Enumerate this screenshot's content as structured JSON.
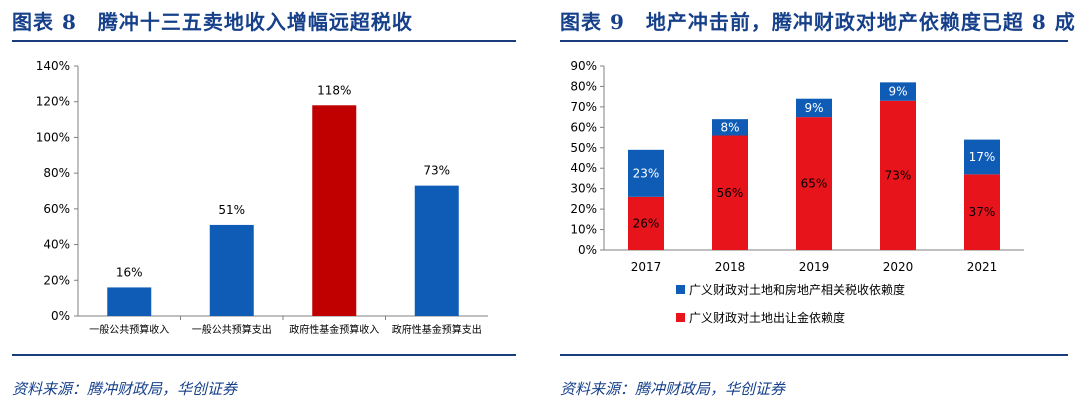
{
  "colors": {
    "blue": "#0f5cb7",
    "dark_red": "#c00000",
    "red": "#e8141c",
    "title": "#16408a"
  },
  "left": {
    "title": "图表 8　腾冲十三五卖地收入增幅远超税收",
    "source": "资料来源：腾冲财政局，华创证券"
  },
  "right": {
    "title": "图表 9　地产冲击前，腾冲财政对地产依赖度已超 8 成",
    "source": "资料来源：腾冲财政局，华创证券"
  },
  "chart_data": [
    {
      "type": "bar",
      "title": "腾冲十三五卖地收入增幅远超税收",
      "categories": [
        "一般公共预算收入",
        "一般公共预算支出",
        "政府性基金预算收入",
        "政府性基金预算支出"
      ],
      "values": [
        16,
        51,
        118,
        73
      ],
      "value_labels": [
        "16%",
        "51%",
        "118%",
        "73%"
      ],
      "highlight_index": 2,
      "ylim": [
        0,
        140
      ],
      "yticks": [
        0,
        20,
        40,
        60,
        80,
        100,
        120,
        140
      ],
      "ytick_labels": [
        "0%",
        "20%",
        "40%",
        "60%",
        "80%",
        "100%",
        "120%",
        "140%"
      ],
      "grid": false
    },
    {
      "type": "stacked_bar",
      "title": "地产冲击前，腾冲财政对地产依赖度已超8成",
      "categories": [
        "2017",
        "2018",
        "2019",
        "2020",
        "2021"
      ],
      "series": [
        {
          "name": "广义财政对土地出让金依赖度",
          "values": [
            26,
            56,
            65,
            73,
            37
          ],
          "labels": [
            "26%",
            "56%",
            "65%",
            "73%",
            "37%"
          ]
        },
        {
          "name": "广义财政对土地和房地产相关税收依赖度",
          "values": [
            23,
            8,
            9,
            9,
            17
          ],
          "labels": [
            "23%",
            "8%",
            "9%",
            "9%",
            "17%"
          ]
        }
      ],
      "legend_entries": [
        "广义财政对土地和房地产相关税收依赖度",
        "广义财政对土地出让金依赖度"
      ],
      "legend_position": "bottom",
      "ylim": [
        0,
        90
      ],
      "yticks": [
        0,
        10,
        20,
        30,
        40,
        50,
        60,
        70,
        80,
        90
      ],
      "ytick_labels": [
        "0%",
        "10%",
        "20%",
        "30%",
        "40%",
        "50%",
        "60%",
        "70%",
        "80%",
        "90%"
      ],
      "grid": false
    }
  ]
}
